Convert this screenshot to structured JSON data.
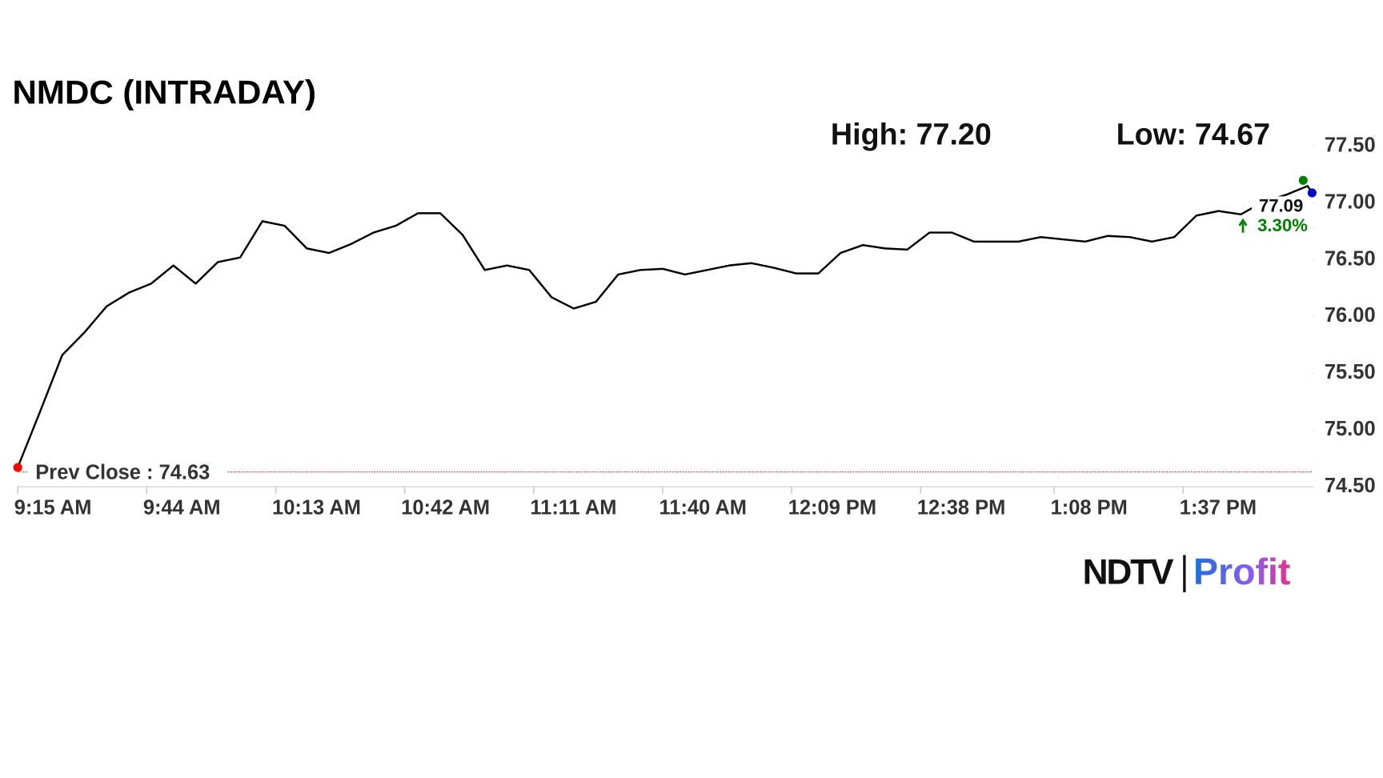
{
  "chart_data": {
    "type": "line",
    "title": "NMDC (INTRADAY)",
    "x": [
      "9:15 AM",
      "9:20 AM",
      "9:25 AM",
      "9:30 AM",
      "9:35 AM",
      "9:40 AM",
      "9:45 AM",
      "9:50 AM",
      "9:55 AM",
      "10:00 AM",
      "10:05 AM",
      "10:10 AM",
      "10:15 AM",
      "10:20 AM",
      "10:25 AM",
      "10:30 AM",
      "10:35 AM",
      "10:40 AM",
      "10:45 AM",
      "10:50 AM",
      "10:55 AM",
      "11:00 AM",
      "11:05 AM",
      "11:10 AM",
      "11:15 AM",
      "11:20 AM",
      "11:25 AM",
      "11:30 AM",
      "11:35 AM",
      "11:40 AM",
      "11:45 AM",
      "11:50 AM",
      "11:55 AM",
      "12:00 PM",
      "12:05 PM",
      "12:10 PM",
      "12:15 PM",
      "12:20 PM",
      "12:25 PM",
      "12:30 PM",
      "12:35 PM",
      "12:40 PM",
      "12:45 PM",
      "12:50 PM",
      "12:55 PM",
      "1:00 PM",
      "1:05 PM",
      "1:10 PM",
      "1:15 PM",
      "1:20 PM",
      "1:25 PM",
      "1:30 PM",
      "1:35 PM",
      "1:40 PM",
      "1:45 PM",
      "1:50 PM",
      "1:55 PM",
      "2:00 PM",
      "2:05 PM",
      "2:06 PM"
    ],
    "series": [
      {
        "name": "NMDC",
        "color": "#000000",
        "values": [
          74.67,
          75.16,
          75.66,
          75.86,
          76.09,
          76.21,
          76.29,
          76.45,
          76.29,
          76.48,
          76.52,
          76.84,
          76.8,
          76.6,
          76.56,
          76.64,
          76.74,
          76.8,
          76.91,
          76.91,
          76.72,
          76.41,
          76.45,
          76.41,
          76.17,
          76.07,
          76.13,
          76.37,
          76.41,
          76.42,
          76.37,
          76.41,
          76.45,
          76.47,
          76.43,
          76.38,
          76.38,
          76.56,
          76.63,
          76.6,
          76.59,
          76.74,
          76.74,
          76.66,
          76.66,
          76.66,
          76.7,
          76.68,
          76.66,
          76.71,
          76.7,
          76.66,
          76.7,
          76.89,
          76.93,
          76.9,
          77.01,
          77.07,
          77.15,
          77.09
        ]
      }
    ],
    "xlim": [
      "9:15 AM",
      "2:06 PM"
    ],
    "xticks": [
      "9:15 AM",
      "9:44 AM",
      "10:13 AM",
      "10:42 AM",
      "11:11 AM",
      "11:40 AM",
      "12:09 PM",
      "12:38 PM",
      "1:08 PM",
      "1:37 PM"
    ],
    "ylim": [
      74.5,
      77.5
    ],
    "yticks": [
      {
        "value": 74.5,
        "label": "74.50"
      },
      {
        "value": 75,
        "label": "75.00"
      },
      {
        "value": 75.5,
        "label": "75.50"
      },
      {
        "value": 76,
        "label": "76.00"
      },
      {
        "value": 76.5,
        "label": "76.50"
      },
      {
        "value": 77,
        "label": "77.00"
      },
      {
        "value": 77.5,
        "label": "77.50"
      }
    ],
    "high": {
      "value": 77.2,
      "label": "High: 77.20",
      "x": "2:04 PM",
      "color": "#008000"
    },
    "low": {
      "value": 74.67,
      "label": "Low: 74.67",
      "x": "9:15 AM",
      "color": "#ff0000"
    },
    "last": {
      "value": 77.09,
      "label": "77.09",
      "change": 3.3,
      "change_label": "3.30%",
      "color": "#0000cc",
      "change_color": "#008000"
    },
    "prev_close": {
      "value": 74.63,
      "label": "Prev Close : 74.63",
      "color": "#b22222"
    }
  },
  "logo": {
    "left": "NDTV",
    "right": "Profit"
  }
}
